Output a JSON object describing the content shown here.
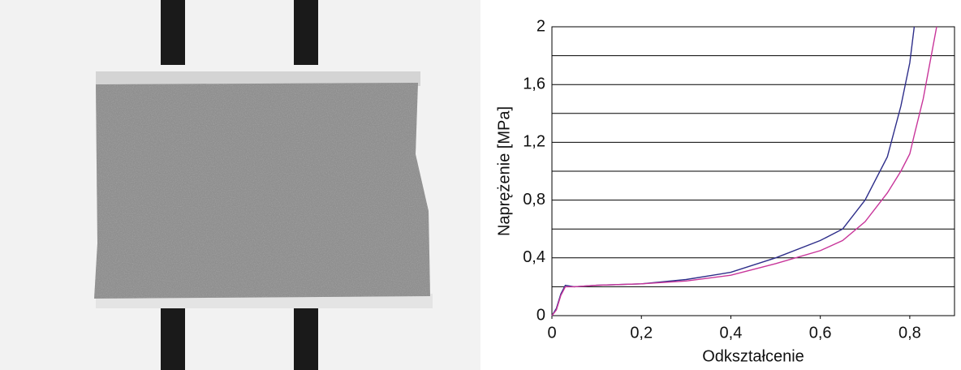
{
  "chart_data": {
    "type": "line",
    "xlabel": "Odkształcenie",
    "ylabel": "Naprężenie [MPa]",
    "x": [
      0,
      0.01,
      0.02,
      0.03,
      0.05,
      0.1,
      0.2,
      0.3,
      0.4,
      0.5,
      0.6,
      0.65,
      0.7,
      0.75,
      0.78,
      0.8,
      0.81,
      0.83,
      0.86
    ],
    "series": [
      {
        "color": "#2e2e8a",
        "values": [
          0,
          0.05,
          0.15,
          0.21,
          0.2,
          0.21,
          0.22,
          0.25,
          0.3,
          0.4,
          0.52,
          0.6,
          0.8,
          1.1,
          1.45,
          1.75,
          2,
          null,
          null
        ]
      },
      {
        "color": "#c8359a",
        "values": [
          0,
          0.04,
          0.14,
          0.2,
          0.2,
          0.21,
          0.22,
          0.24,
          0.28,
          0.36,
          0.45,
          0.52,
          0.65,
          0.85,
          1.0,
          1.12,
          1.25,
          1.5,
          2
        ]
      }
    ],
    "xlim": [
      0,
      0.9
    ],
    "xticks": [
      0,
      {
        "value": 0.2,
        "label": "0,2"
      },
      {
        "value": 0.4,
        "label": "0,4"
      },
      {
        "value": 0.6,
        "label": "0,6"
      },
      {
        "value": 0.8,
        "label": "0,8"
      }
    ],
    "ylim": [
      0,
      2
    ],
    "yticks": [
      0,
      {
        "value": 0.4,
        "label": "0,4"
      },
      {
        "value": 0.8,
        "label": "0,8"
      },
      {
        "value": 1.2,
        "label": "1,2"
      },
      {
        "value": 1.6,
        "label": "1,6"
      },
      2
    ],
    "yminor": [
      0.2,
      0.6,
      1,
      1.4,
      1.8
    ],
    "grid": true
  }
}
